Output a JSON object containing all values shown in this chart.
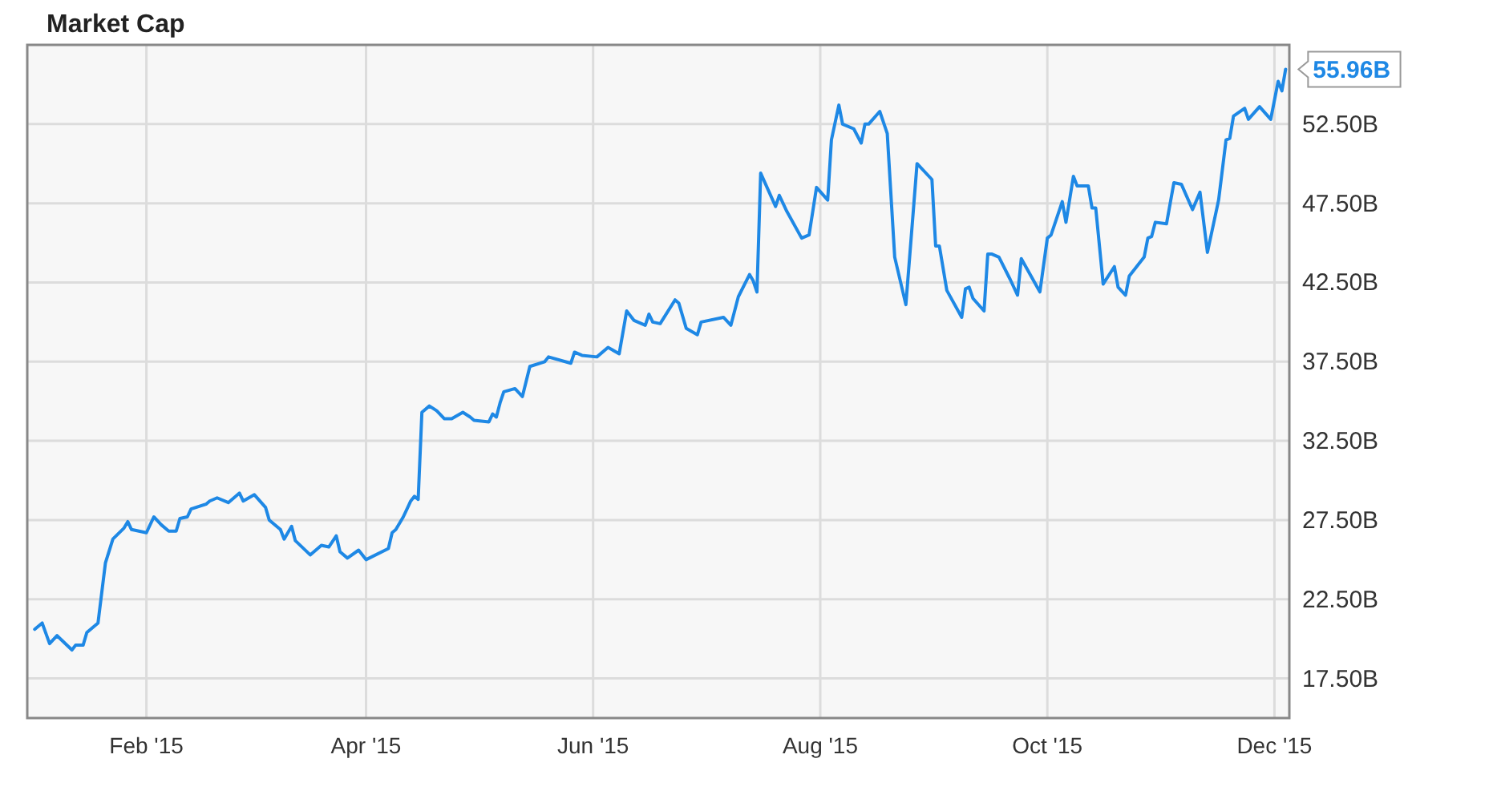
{
  "chart_data": {
    "type": "line",
    "title": "Market Cap",
    "x": [
      "2015-01-02",
      "2015-01-04",
      "2015-01-06",
      "2015-01-08",
      "2015-01-12",
      "2015-01-13",
      "2015-01-15",
      "2015-01-16",
      "2015-01-19",
      "2015-01-21",
      "2015-01-23",
      "2015-01-26",
      "2015-01-27",
      "2015-01-28",
      "2015-02-01",
      "2015-02-03",
      "2015-02-05",
      "2015-02-07",
      "2015-02-09",
      "2015-02-10",
      "2015-02-12",
      "2015-02-13",
      "2015-02-17",
      "2015-02-18",
      "2015-02-20",
      "2015-02-23",
      "2015-02-26",
      "2015-02-27",
      "2015-03-02",
      "2015-03-05",
      "2015-03-06",
      "2015-03-09",
      "2015-03-10",
      "2015-03-12",
      "2015-03-13",
      "2015-03-17",
      "2015-03-20",
      "2015-03-22",
      "2015-03-24",
      "2015-03-25",
      "2015-03-27",
      "2015-03-30",
      "2015-04-01",
      "2015-04-07",
      "2015-04-08",
      "2015-04-09",
      "2015-04-11",
      "2015-04-13",
      "2015-04-14",
      "2015-04-15",
      "2015-04-16",
      "2015-04-18",
      "2015-04-20",
      "2015-04-22",
      "2015-04-24",
      "2015-04-27",
      "2015-04-29",
      "2015-04-30",
      "2015-05-04",
      "2015-05-05",
      "2015-05-06",
      "2015-05-07",
      "2015-05-08",
      "2015-05-11",
      "2015-05-13",
      "2015-05-15",
      "2015-05-19",
      "2015-05-20",
      "2015-05-26",
      "2015-05-27",
      "2015-05-29",
      "2015-06-02",
      "2015-06-05",
      "2015-06-08",
      "2015-06-10",
      "2015-06-12",
      "2015-06-15",
      "2015-06-16",
      "2015-06-17",
      "2015-06-19",
      "2015-06-23",
      "2015-06-24",
      "2015-06-26",
      "2015-06-29",
      "2015-06-30",
      "2015-07-06",
      "2015-07-08",
      "2015-07-10",
      "2015-07-13",
      "2015-07-14",
      "2015-07-15",
      "2015-07-16",
      "2015-07-20",
      "2015-07-21",
      "2015-07-23",
      "2015-07-27",
      "2015-07-29",
      "2015-07-31",
      "2015-08-03",
      "2015-08-04",
      "2015-08-06",
      "2015-08-07",
      "2015-08-10",
      "2015-08-12",
      "2015-08-13",
      "2015-08-14",
      "2015-08-17",
      "2015-08-19",
      "2015-08-21",
      "2015-08-24",
      "2015-08-27",
      "2015-08-31",
      "2015-09-01",
      "2015-09-02",
      "2015-09-04",
      "2015-09-08",
      "2015-09-09",
      "2015-09-10",
      "2015-09-11",
      "2015-09-14",
      "2015-09-15",
      "2015-09-16",
      "2015-09-18",
      "2015-09-21",
      "2015-09-23",
      "2015-09-24",
      "2015-09-29",
      "2015-10-01",
      "2015-10-02",
      "2015-10-05",
      "2015-10-06",
      "2015-10-08",
      "2015-10-09",
      "2015-10-12",
      "2015-10-13",
      "2015-10-14",
      "2015-10-16",
      "2015-10-19",
      "2015-10-20",
      "2015-10-22",
      "2015-10-23",
      "2015-10-27",
      "2015-10-28",
      "2015-10-29",
      "2015-10-30",
      "2015-11-02",
      "2015-11-04",
      "2015-11-06",
      "2015-11-09",
      "2015-11-11",
      "2015-11-13",
      "2015-11-16",
      "2015-11-18",
      "2015-11-19",
      "2015-11-20",
      "2015-11-23",
      "2015-11-24",
      "2015-11-27",
      "2015-11-30",
      "2015-12-02",
      "2015-12-03",
      "2015-12-04"
    ],
    "series": [
      {
        "color": "#1e88e5",
        "values": [
          20.6,
          21.0,
          19.7,
          20.2,
          19.3,
          19.6,
          19.6,
          20.4,
          21.0,
          24.8,
          26.3,
          27.0,
          27.4,
          26.9,
          26.7,
          27.7,
          27.2,
          26.8,
          26.8,
          27.6,
          27.7,
          28.2,
          28.5,
          28.7,
          28.9,
          28.6,
          29.2,
          28.7,
          29.1,
          28.3,
          27.5,
          26.9,
          26.3,
          27.1,
          26.2,
          25.3,
          25.9,
          25.8,
          26.5,
          25.5,
          25.1,
          25.6,
          25.0,
          25.7,
          26.7,
          26.9,
          27.7,
          28.7,
          29.0,
          28.8,
          34.3,
          34.7,
          34.4,
          33.9,
          33.9,
          34.3,
          34.0,
          33.8,
          33.7,
          34.2,
          34.0,
          34.9,
          35.6,
          35.8,
          35.3,
          37.2,
          37.5,
          37.8,
          37.4,
          38.1,
          37.9,
          37.8,
          38.4,
          38.0,
          40.7,
          40.1,
          39.8,
          40.5,
          40.0,
          39.9,
          41.4,
          41.2,
          39.6,
          39.2,
          40.0,
          40.3,
          39.8,
          41.6,
          43.0,
          42.6,
          41.9,
          49.4,
          47.3,
          48.0,
          47.0,
          45.3,
          45.5,
          48.5,
          47.7,
          51.5,
          53.7,
          52.5,
          52.2,
          51.3,
          52.5,
          52.5,
          53.3,
          51.9,
          44.1,
          41.1,
          50.0,
          49.0,
          44.8,
          44.8,
          42.0,
          40.3,
          42.1,
          42.2,
          41.5,
          40.7,
          44.3,
          44.3,
          44.1,
          42.7,
          41.7,
          44.0,
          41.9,
          45.3,
          45.5,
          47.6,
          46.3,
          49.2,
          48.6,
          48.6,
          47.2,
          47.2,
          42.4,
          43.5,
          42.2,
          41.7,
          42.9,
          44.1,
          45.3,
          45.4,
          46.3,
          46.2,
          48.8,
          48.7,
          47.1,
          48.2,
          44.4,
          47.7,
          51.5,
          51.6,
          53.0,
          53.5,
          52.8,
          53.6,
          52.8,
          55.2,
          54.6,
          55.96
        ],
        "value_labels": [
          null,
          null,
          null,
          null,
          null,
          null,
          null,
          null,
          null,
          null,
          null,
          null,
          null,
          null,
          null,
          null,
          null,
          null,
          null,
          null,
          null,
          null,
          null,
          null,
          null,
          null,
          null,
          null,
          null,
          null,
          null,
          null,
          null,
          null,
          null,
          null,
          null,
          null,
          null,
          null,
          null,
          null,
          null,
          null,
          null,
          null,
          null,
          null,
          null,
          null,
          null,
          null,
          null,
          null,
          null,
          null,
          null,
          null,
          null,
          null,
          null,
          null,
          null,
          null,
          null,
          null,
          null,
          null,
          null,
          null,
          null,
          null,
          null,
          null,
          null,
          null,
          null,
          null,
          null,
          null,
          null,
          null,
          null,
          null,
          null,
          null,
          null,
          null,
          null,
          null,
          null,
          null,
          null,
          null,
          null,
          null,
          null,
          null,
          null,
          null,
          null,
          null,
          null,
          null,
          null,
          null,
          null,
          null,
          null,
          null,
          null,
          null,
          null,
          null,
          null,
          null,
          null,
          null,
          null,
          null,
          null,
          null,
          null,
          null,
          null,
          null,
          null,
          null,
          null,
          null,
          null,
          null,
          null,
          null,
          null,
          null,
          null,
          null,
          null,
          null,
          null,
          null,
          null,
          null,
          null,
          null,
          null,
          null,
          null,
          null,
          null,
          null,
          null,
          null,
          null,
          null,
          null,
          null,
          null,
          null,
          null,
          "55.96B"
        ]
      }
    ],
    "xlim": [
      "2014-12-31",
      "2015-12-05"
    ],
    "xticks": [
      {
        "value": "2015-02-01",
        "label": "Feb '15"
      },
      {
        "value": "2015-04-01",
        "label": "Apr '15"
      },
      {
        "value": "2015-06-01",
        "label": "Jun '15"
      },
      {
        "value": "2015-08-01",
        "label": "Aug '15"
      },
      {
        "value": "2015-10-01",
        "label": "Oct '15"
      },
      {
        "value": "2015-12-01",
        "label": "Dec '15"
      }
    ],
    "ylim": [
      15,
      57.5
    ],
    "yticks": [
      {
        "value": 17.5,
        "label": "17.50B"
      },
      {
        "value": 22.5,
        "label": "22.50B"
      },
      {
        "value": 27.5,
        "label": "27.50B"
      },
      {
        "value": 32.5,
        "label": "32.50B"
      },
      {
        "value": 37.5,
        "label": "37.50B"
      },
      {
        "value": 42.5,
        "label": "42.50B"
      },
      {
        "value": 47.5,
        "label": "47.50B"
      },
      {
        "value": 52.5,
        "label": "52.50B"
      }
    ],
    "grid": true,
    "marker": "none",
    "line_style": "solid"
  }
}
